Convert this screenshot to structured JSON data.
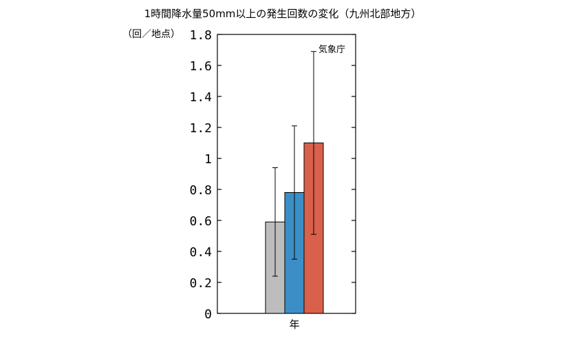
{
  "chart_data": {
    "type": "bar",
    "title": "1時間降水量50mm以上の発生回数の変化（九州北部地方）",
    "ylabel": "（回／地点）",
    "annotation": "気象庁",
    "categories": [
      "年"
    ],
    "ylim": [
      0,
      1.8
    ],
    "y_ticks": [
      "0",
      "0.2",
      "0.4",
      "0.6",
      "0.8",
      "1",
      "1.2",
      "1.4",
      "1.6",
      "1.8"
    ],
    "y_tick_values": [
      0,
      0.2,
      0.4,
      0.6,
      0.8,
      1.0,
      1.2,
      1.4,
      1.6,
      1.8
    ],
    "grid": false,
    "series": [
      {
        "values": [
          0.59
        ],
        "error_low": [
          0.24
        ],
        "error_high": [
          0.94
        ],
        "color": "#bdbdbd"
      },
      {
        "values": [
          0.78
        ],
        "error_low": [
          0.35
        ],
        "error_high": [
          1.21
        ],
        "color": "#3b8fc6"
      },
      {
        "values": [
          1.1
        ],
        "error_low": [
          0.51
        ],
        "error_high": [
          1.69
        ],
        "color": "#d9614b"
      }
    ]
  }
}
